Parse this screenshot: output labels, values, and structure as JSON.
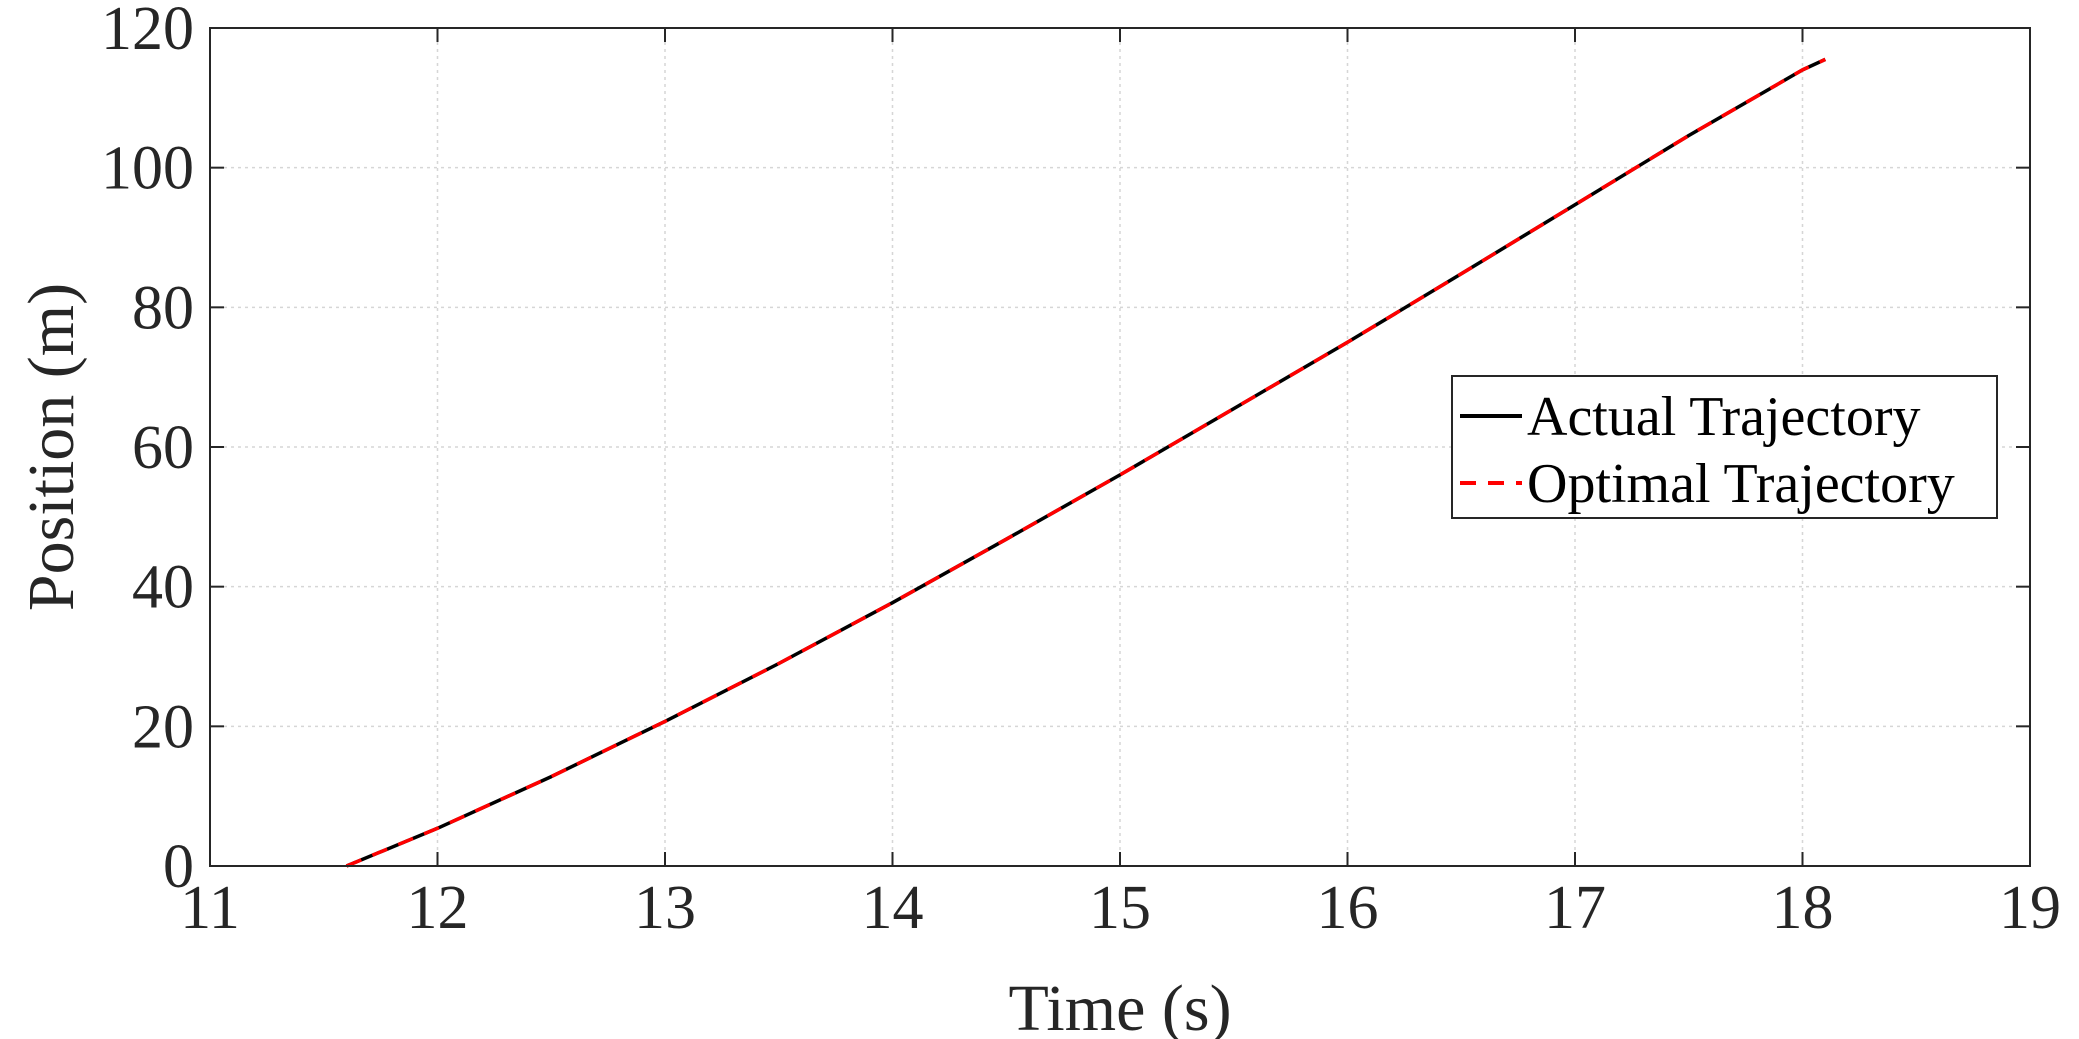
{
  "chart_data": {
    "type": "line",
    "title": "",
    "xlabel": "Time (s)",
    "ylabel": "Position (m)",
    "xlim": [
      11,
      19
    ],
    "ylim": [
      0,
      120
    ],
    "xticks": [
      11,
      12,
      13,
      14,
      15,
      16,
      17,
      18,
      19
    ],
    "yticks": [
      0,
      20,
      40,
      60,
      80,
      100,
      120
    ],
    "grid": true,
    "legend_position": "right",
    "series": [
      {
        "name": "Actual Trajectory",
        "color": "#000000",
        "style": "solid",
        "x": [
          11.6,
          12.0,
          12.5,
          13.0,
          13.5,
          14.0,
          14.5,
          15.0,
          15.5,
          16.0,
          16.5,
          17.0,
          17.5,
          18.0,
          18.1
        ],
        "y": [
          0,
          5.4,
          12.8,
          20.7,
          29.0,
          37.7,
          46.8,
          56.0,
          65.5,
          75.0,
          84.8,
          94.7,
          104.6,
          114.0,
          115.5
        ]
      },
      {
        "name": "Optimal Trajectory",
        "color": "#ff0000",
        "style": "dashed",
        "x": [
          11.6,
          12.0,
          12.5,
          13.0,
          13.5,
          14.0,
          14.5,
          15.0,
          15.5,
          16.0,
          16.5,
          17.0,
          17.5,
          18.0,
          18.1
        ],
        "y": [
          0,
          5.4,
          12.8,
          20.7,
          29.0,
          37.7,
          46.8,
          56.0,
          65.5,
          75.0,
          84.8,
          94.7,
          104.6,
          114.0,
          115.5
        ]
      }
    ]
  }
}
